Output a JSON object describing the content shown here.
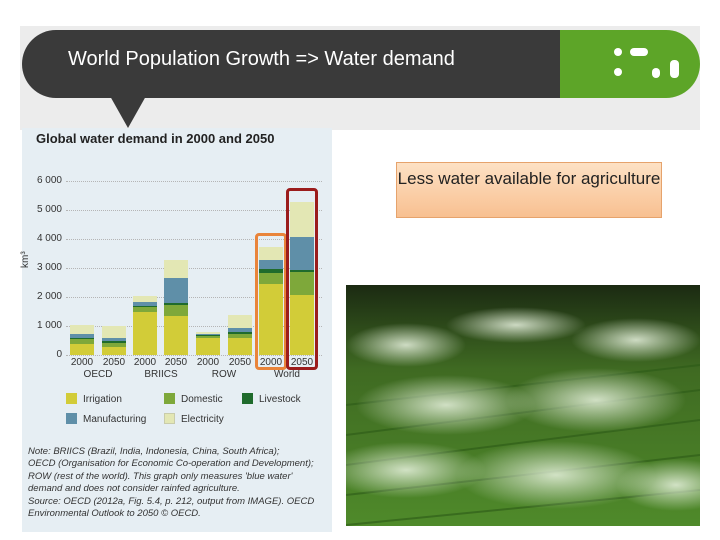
{
  "slide": {
    "title": "World Population Growth => Water demand",
    "callout": "Less water available for agriculture",
    "photo_label": "sprinkler-irrigated crop field"
  },
  "chart_data": {
    "type": "bar",
    "stacked": true,
    "title": "Global water demand in 2000 and 2050",
    "ylabel": "km³",
    "ylim": [
      0,
      6000
    ],
    "yticks": [
      "0",
      "1 000",
      "2 000",
      "3 000",
      "4 000",
      "5 000",
      "6 000"
    ],
    "categories": [
      "2000",
      "2050",
      "2000",
      "2050",
      "2000",
      "2050",
      "2000",
      "2050"
    ],
    "groups": [
      "OECD",
      "BRIICS",
      "ROW",
      "World"
    ],
    "series": [
      {
        "name": "Irrigation",
        "color": "#d2cc38",
        "values": [
          380,
          290,
          1480,
          1350,
          590,
          600,
          2460,
          2070
        ]
      },
      {
        "name": "Domestic",
        "color": "#7ea83a",
        "values": [
          170,
          130,
          160,
          380,
          60,
          130,
          380,
          780
        ]
      },
      {
        "name": "Livestock",
        "color": "#1f6b2c",
        "values": [
          50,
          70,
          40,
          80,
          30,
          50,
          120,
          70
        ]
      },
      {
        "name": "Manufacturing",
        "color": "#5f8fa8",
        "values": [
          120,
          80,
          150,
          860,
          60,
          140,
          330,
          1160
        ]
      },
      {
        "name": "Electricity",
        "color": "#e3e7b4",
        "values": [
          330,
          430,
          190,
          610,
          60,
          460,
          420,
          1210
        ]
      }
    ],
    "highlighted": [
      "World 2000",
      "World 2050"
    ],
    "note_lines": [
      "Note: BRIICS (Brazil, India, Indonesia, China, South Africa);",
      "OECD (Organisation for Economic Co-operation and Development);",
      "ROW (rest of the world). This graph only measures 'blue water'",
      "demand and does not consider rainfed agriculture.",
      "Source: OECD (2012a, Fig. 5.4, p. 212, output from IMAGE). OECD",
      "Environmental Outlook to 2050 © OECD."
    ]
  },
  "colors": {
    "title_bubble": "#3a3a3a",
    "logo_green": "#5da528",
    "highlight_2000": "#e9843a",
    "highlight_2050": "#9b1c1c"
  }
}
